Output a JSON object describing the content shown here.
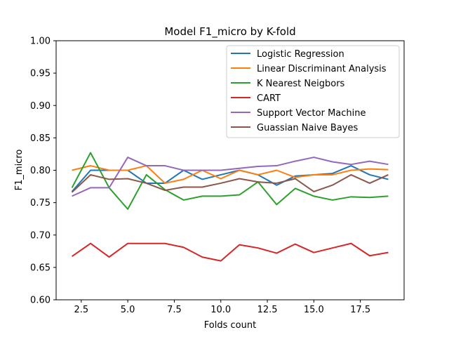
{
  "chart_data": {
    "type": "line",
    "title": "Model F1_micro by K-fold",
    "xlabel": "Folds count",
    "ylabel": "F1_micro",
    "xlim": [
      1.15,
      19.85
    ],
    "ylim": [
      0.6,
      1.0
    ],
    "xticks": [
      2.5,
      5.0,
      7.5,
      10.0,
      12.5,
      15.0,
      17.5
    ],
    "xtick_labels": [
      "2.5",
      "5.0",
      "7.5",
      "10.0",
      "12.5",
      "15.0",
      "17.5"
    ],
    "yticks": [
      0.6,
      0.65,
      0.7,
      0.75,
      0.8,
      0.85,
      0.9,
      0.95,
      1.0
    ],
    "ytick_labels": [
      "0.60",
      "0.65",
      "0.70",
      "0.75",
      "0.80",
      "0.85",
      "0.90",
      "0.95",
      "1.00"
    ],
    "grid": false,
    "legend_position": "top-right",
    "x": [
      2,
      3,
      4,
      5,
      6,
      7,
      8,
      9,
      10,
      11,
      12,
      13,
      14,
      15,
      16,
      17,
      18,
      19
    ],
    "series": [
      {
        "name": "Logistic Regression",
        "color": "#1f77b4",
        "values": [
          0.767,
          0.8,
          0.8,
          0.8,
          0.78,
          0.78,
          0.8,
          0.786,
          0.793,
          0.8,
          0.793,
          0.777,
          0.791,
          0.793,
          0.795,
          0.807,
          0.793,
          0.786
        ]
      },
      {
        "name": "Linear Discriminant Analysis",
        "color": "#ff7f0e",
        "values": [
          0.8,
          0.807,
          0.8,
          0.8,
          0.807,
          0.78,
          0.786,
          0.8,
          0.787,
          0.8,
          0.793,
          0.8,
          0.789,
          0.793,
          0.793,
          0.8,
          0.802,
          0.801
        ]
      },
      {
        "name": "K Nearest Neigbors",
        "color": "#2ca02c",
        "values": [
          0.773,
          0.827,
          0.773,
          0.74,
          0.793,
          0.77,
          0.754,
          0.76,
          0.76,
          0.762,
          0.782,
          0.747,
          0.772,
          0.76,
          0.754,
          0.759,
          0.758,
          0.76
        ]
      },
      {
        "name": "CART",
        "color": "#d62728",
        "values": [
          0.667,
          0.687,
          0.666,
          0.687,
          0.687,
          0.687,
          0.681,
          0.666,
          0.66,
          0.685,
          0.68,
          0.672,
          0.686,
          0.673,
          0.68,
          0.687,
          0.668,
          0.673
        ]
      },
      {
        "name": "Support Vector Machine",
        "color": "#9467bd",
        "values": [
          0.76,
          0.773,
          0.773,
          0.82,
          0.807,
          0.807,
          0.8,
          0.8,
          0.8,
          0.803,
          0.806,
          0.807,
          0.814,
          0.82,
          0.813,
          0.809,
          0.814,
          0.809
        ]
      },
      {
        "name": "Guassian Naive Bayes",
        "color": "#8c564b",
        "values": [
          0.766,
          0.793,
          0.786,
          0.787,
          0.78,
          0.769,
          0.774,
          0.774,
          0.78,
          0.787,
          0.782,
          0.78,
          0.787,
          0.767,
          0.777,
          0.793,
          0.78,
          0.793
        ]
      }
    ]
  }
}
